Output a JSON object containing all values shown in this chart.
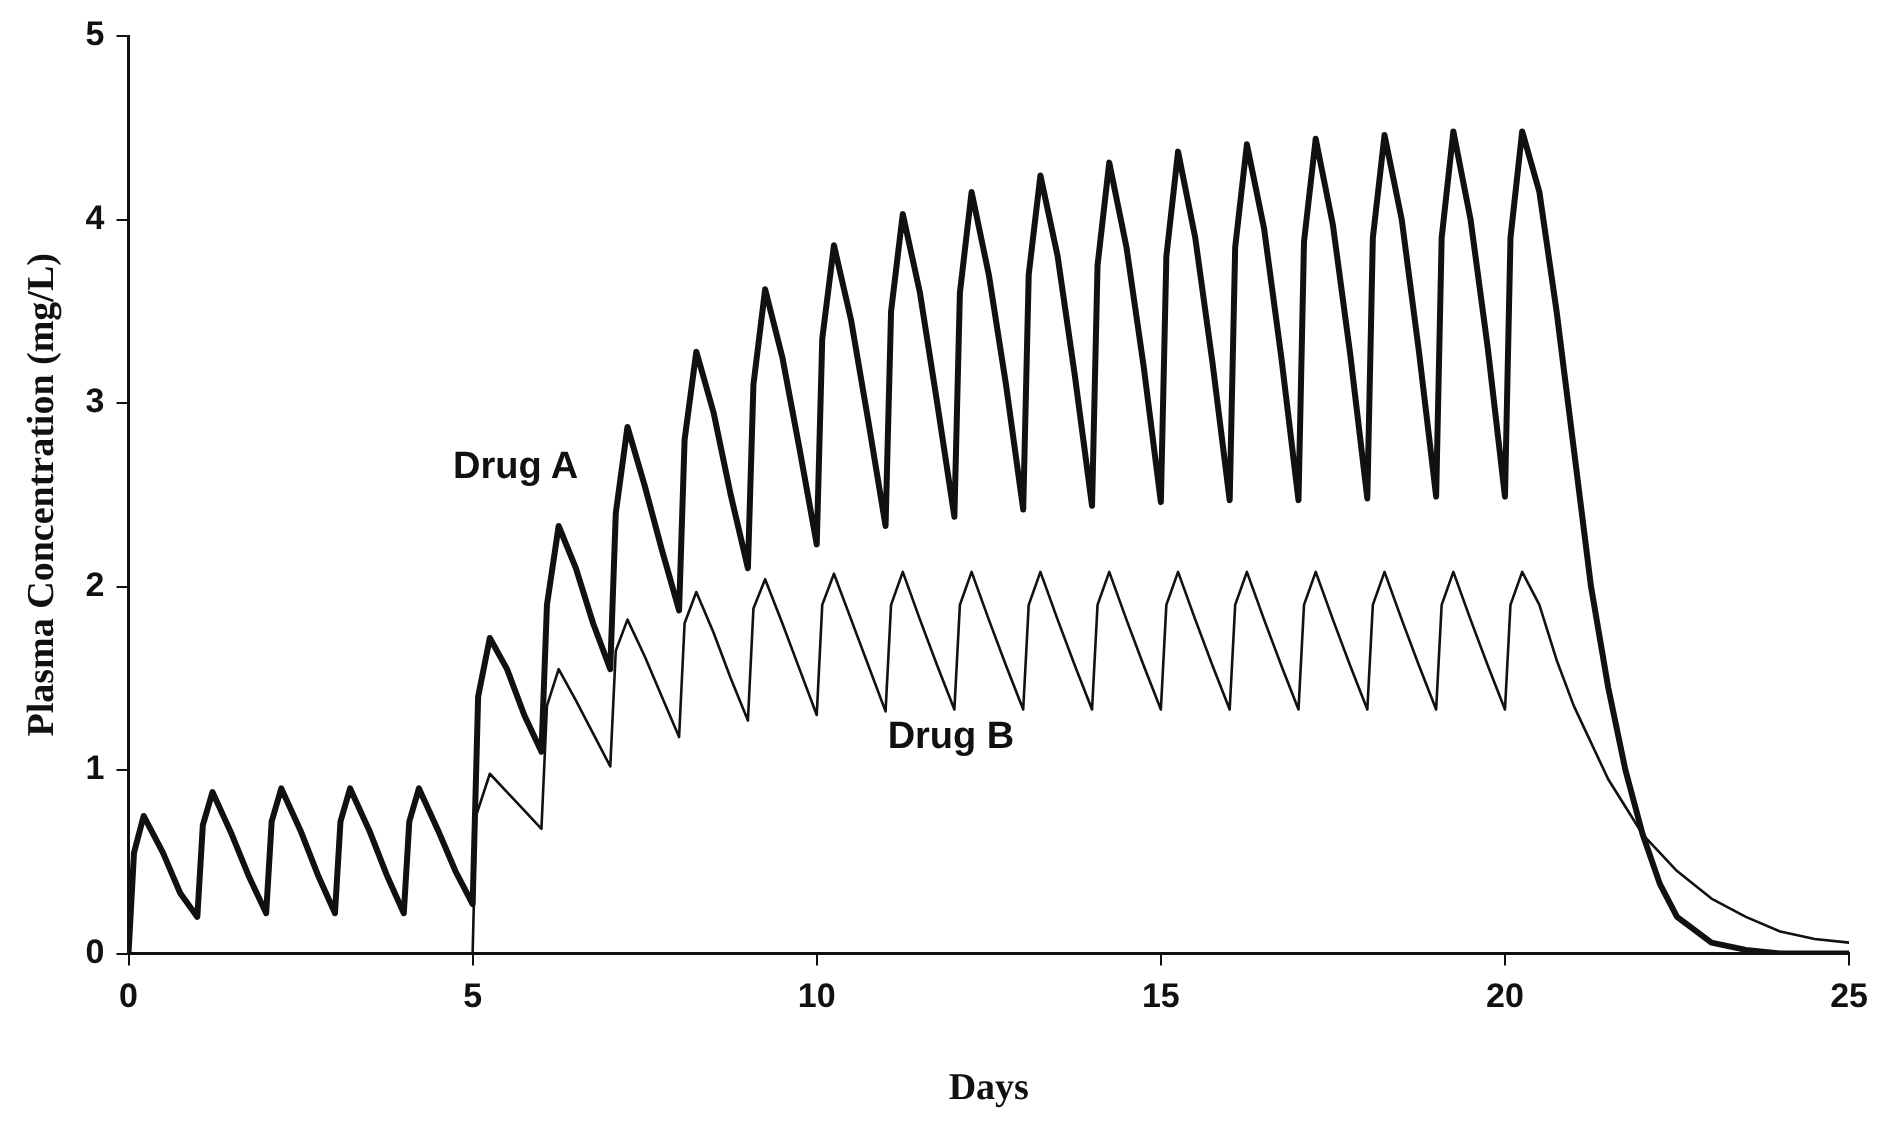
{
  "chart_data": {
    "type": "line",
    "xlabel": "Days",
    "ylabel": "Plasma Concentration (mg/L)",
    "xlim": [
      0,
      25
    ],
    "xticks": [
      0,
      5,
      10,
      15,
      20,
      25
    ],
    "ylim": [
      0,
      5
    ],
    "yticks": [
      0,
      1,
      2,
      3,
      4,
      5
    ],
    "grid": false,
    "legend": false,
    "marker": "none",
    "line_style": "solid",
    "series": [
      {
        "name": "Drug A",
        "color": "#111111",
        "x": [
          0,
          0.08,
          0.22,
          0.5,
          0.75,
          1,
          1.08,
          1.22,
          1.5,
          1.75,
          2,
          2.08,
          2.22,
          2.5,
          2.75,
          3,
          3.08,
          3.22,
          3.5,
          3.75,
          4,
          4.08,
          4.22,
          4.5,
          4.75,
          5,
          5.08,
          5.25,
          5.5,
          5.75,
          6,
          6.08,
          6.25,
          6.5,
          6.75,
          7,
          7.08,
          7.25,
          7.5,
          7.75,
          8,
          8.08,
          8.25,
          8.5,
          8.75,
          9,
          9.08,
          9.25,
          9.5,
          9.75,
          10,
          10.08,
          10.25,
          10.5,
          10.75,
          11,
          11.08,
          11.25,
          11.5,
          11.75,
          12,
          12.08,
          12.25,
          12.5,
          12.75,
          13,
          13.08,
          13.25,
          13.5,
          13.75,
          14,
          14.08,
          14.25,
          14.5,
          14.75,
          15,
          15.08,
          15.25,
          15.5,
          15.75,
          16,
          16.08,
          16.25,
          16.5,
          16.75,
          17,
          17.08,
          17.25,
          17.5,
          17.75,
          18,
          18.08,
          18.25,
          18.5,
          18.75,
          19,
          19.08,
          19.25,
          19.5,
          19.75,
          20,
          20.08,
          20.25,
          20.5,
          20.75,
          21,
          21.25,
          21.5,
          21.75,
          22,
          22.25,
          22.5,
          23,
          23.5,
          24,
          25
        ],
        "values": [
          0,
          0.55,
          0.75,
          0.55,
          0.33,
          0.2,
          0.7,
          0.88,
          0.65,
          0.42,
          0.22,
          0.72,
          0.9,
          0.67,
          0.43,
          0.22,
          0.72,
          0.9,
          0.67,
          0.43,
          0.22,
          0.72,
          0.9,
          0.67,
          0.45,
          0.27,
          1.4,
          1.72,
          1.55,
          1.3,
          1.1,
          1.9,
          2.33,
          2.1,
          1.8,
          1.55,
          2.4,
          2.87,
          2.55,
          2.2,
          1.87,
          2.8,
          3.28,
          2.95,
          2.5,
          2.1,
          3.1,
          3.62,
          3.25,
          2.75,
          2.23,
          3.35,
          3.86,
          3.45,
          2.9,
          2.33,
          3.5,
          4.03,
          3.6,
          3,
          2.38,
          3.6,
          4.15,
          3.7,
          3.1,
          2.42,
          3.7,
          4.24,
          3.8,
          3.15,
          2.44,
          3.75,
          4.31,
          3.85,
          3.2,
          2.46,
          3.8,
          4.37,
          3.9,
          3.22,
          2.47,
          3.85,
          4.41,
          3.95,
          3.25,
          2.47,
          3.88,
          4.44,
          3.97,
          3.27,
          2.48,
          3.9,
          4.46,
          4,
          3.28,
          2.49,
          3.9,
          4.48,
          4,
          3.3,
          2.49,
          3.9,
          4.48,
          4.15,
          3.5,
          2.75,
          2,
          1.45,
          1,
          0.65,
          0.38,
          0.2,
          0.06,
          0.02,
          0,
          0
        ]
      },
      {
        "name": "Drug B",
        "color": "#111111",
        "x": [
          5,
          5.05,
          5.25,
          5.5,
          5.75,
          6,
          6.08,
          6.25,
          6.5,
          6.75,
          7,
          7.08,
          7.25,
          7.5,
          7.75,
          8,
          8.08,
          8.25,
          8.5,
          8.75,
          9,
          9.08,
          9.25,
          9.5,
          9.75,
          10,
          10.08,
          10.25,
          10.5,
          10.75,
          11,
          11.08,
          11.25,
          11.5,
          11.75,
          12,
          12.08,
          12.25,
          12.5,
          12.75,
          13,
          13.08,
          13.25,
          13.5,
          13.75,
          14,
          14.08,
          14.25,
          14.5,
          14.75,
          15,
          15.08,
          15.25,
          15.5,
          15.75,
          16,
          16.08,
          16.25,
          16.5,
          16.75,
          17,
          17.08,
          17.25,
          17.5,
          17.75,
          18,
          18.08,
          18.25,
          18.5,
          18.75,
          19,
          19.08,
          19.25,
          19.5,
          19.75,
          20,
          20.08,
          20.25,
          20.5,
          20.75,
          21,
          21.5,
          22,
          22.5,
          23,
          23.5,
          24,
          24.5,
          25
        ],
        "values": [
          0,
          0.75,
          0.98,
          0.88,
          0.78,
          0.68,
          1.35,
          1.55,
          1.38,
          1.2,
          1.02,
          1.65,
          1.82,
          1.62,
          1.4,
          1.18,
          1.8,
          1.97,
          1.75,
          1.5,
          1.27,
          1.88,
          2.04,
          1.8,
          1.55,
          1.3,
          1.9,
          2.07,
          1.82,
          1.57,
          1.32,
          1.9,
          2.08,
          1.82,
          1.57,
          1.33,
          1.9,
          2.08,
          1.82,
          1.57,
          1.33,
          1.9,
          2.08,
          1.82,
          1.57,
          1.33,
          1.9,
          2.08,
          1.82,
          1.57,
          1.33,
          1.9,
          2.08,
          1.82,
          1.57,
          1.33,
          1.9,
          2.08,
          1.82,
          1.57,
          1.33,
          1.9,
          2.08,
          1.82,
          1.57,
          1.33,
          1.9,
          2.08,
          1.82,
          1.57,
          1.33,
          1.9,
          2.08,
          1.82,
          1.57,
          1.33,
          1.9,
          2.08,
          1.9,
          1.6,
          1.35,
          0.95,
          0.65,
          0.45,
          0.3,
          0.2,
          0.12,
          0.08,
          0.06
        ]
      }
    ]
  }
}
